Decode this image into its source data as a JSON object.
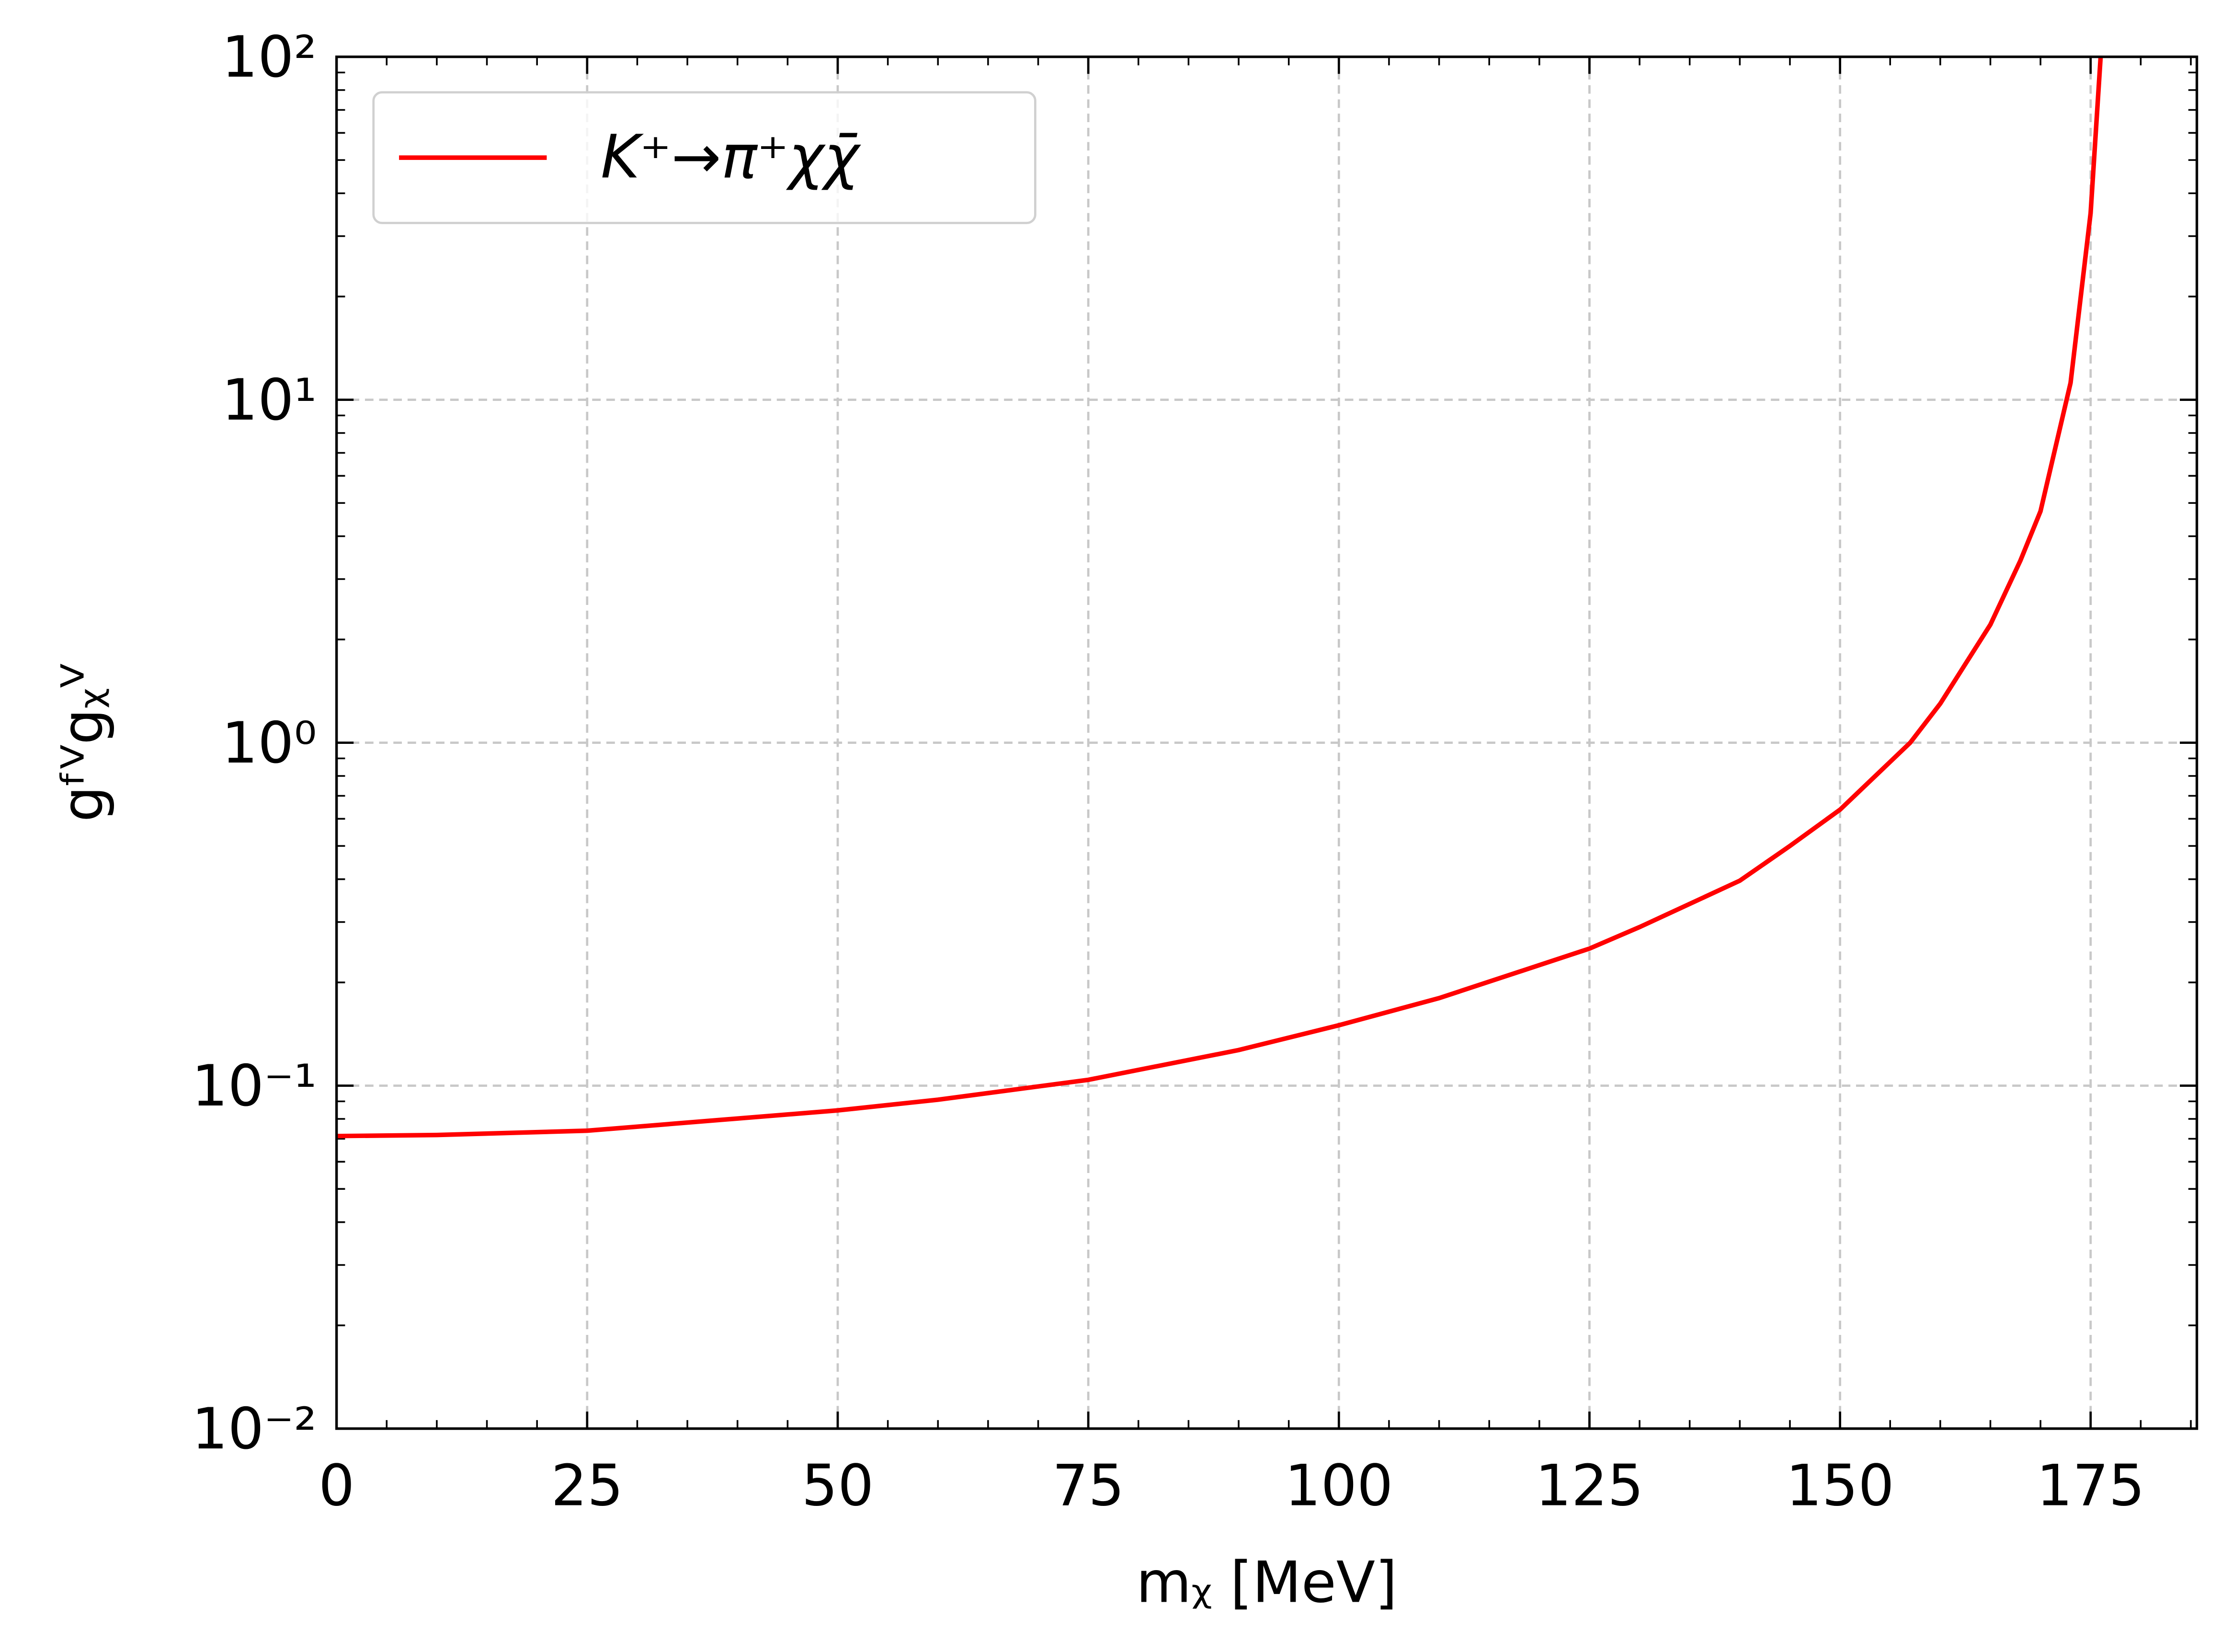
{
  "chart_data": {
    "type": "line",
    "x_label": "mᵪ [MeV]",
    "y_label": "gᶠⱽgᵪⱽ",
    "xlim": [
      0,
      185.6
    ],
    "xticks": [
      0,
      25,
      50,
      75,
      100,
      125,
      150,
      175
    ],
    "ylim": [
      0.01,
      100
    ],
    "yticks": [
      {
        "value": 0.01,
        "label": "10⁻²"
      },
      {
        "value": 0.1,
        "label": "10⁻¹"
      },
      {
        "value": 1,
        "label": "10⁰"
      },
      {
        "value": 10,
        "label": "10¹"
      },
      {
        "value": 100,
        "label": "10²"
      }
    ],
    "y_scale": "log",
    "grid": true,
    "legend": "upper left",
    "x": [
      0,
      10,
      25,
      50,
      60,
      75,
      90,
      100,
      110,
      125,
      130,
      140,
      145,
      150,
      157,
      160,
      165,
      168,
      170,
      173,
      175,
      176
    ],
    "series": [
      {
        "name": "K⁺→π⁺χχ̄",
        "color": "#ff0000",
        "values": [
          0.0713,
          0.0718,
          0.0739,
          0.0847,
          0.091,
          0.104,
          0.127,
          0.15,
          0.18,
          0.251,
          0.29,
          0.396,
          0.5,
          0.638,
          1.0,
          1.3,
          2.21,
          3.4,
          4.73,
          11.2,
          35,
          100
        ]
      }
    ]
  }
}
